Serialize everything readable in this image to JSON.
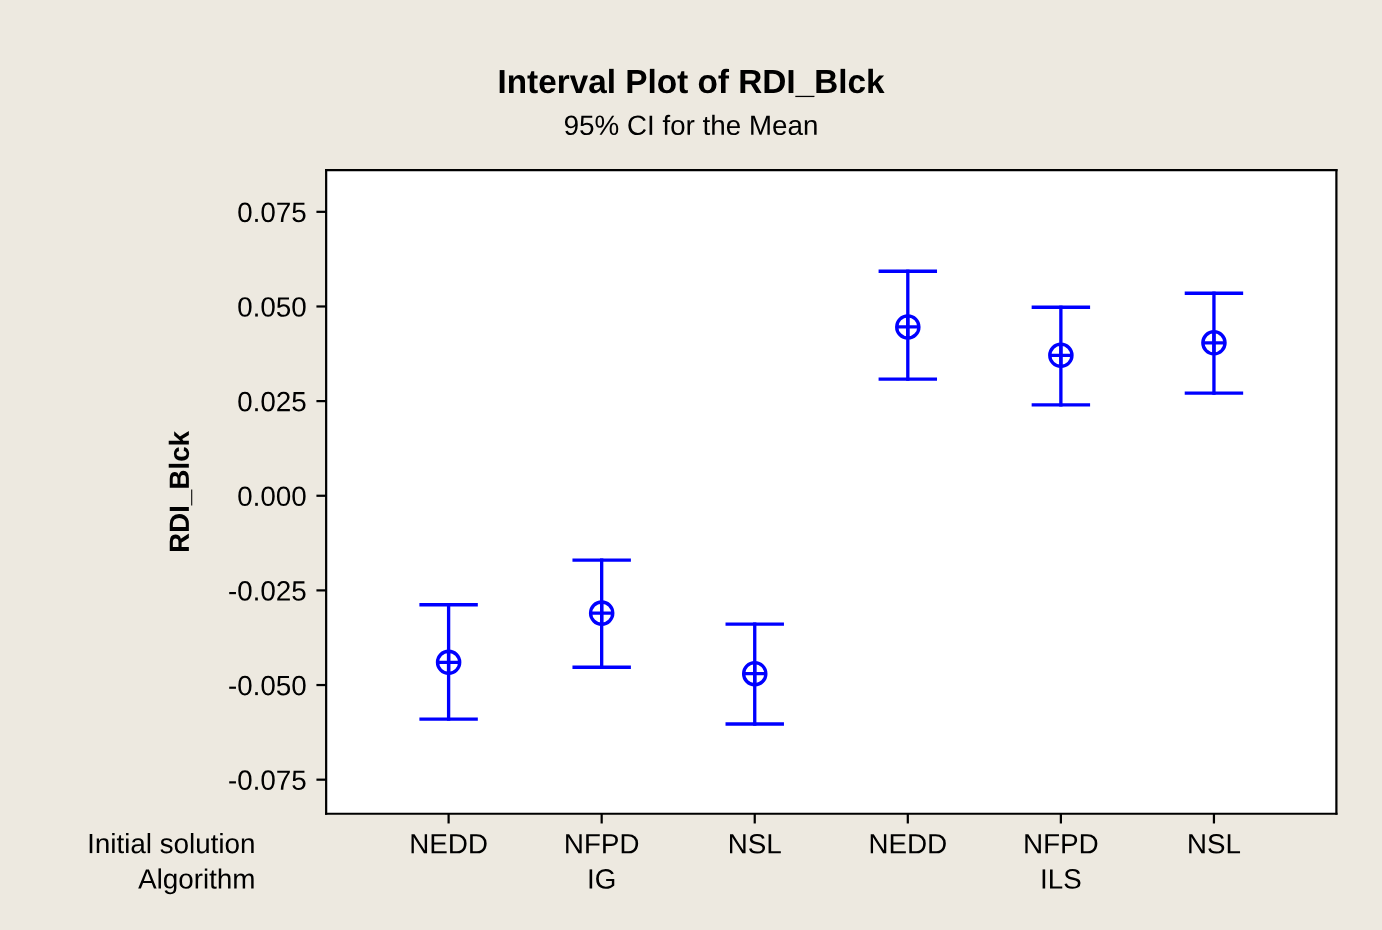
{
  "chart_data": {
    "type": "scatter",
    "title": "Interval Plot of RDI_Blck",
    "subtitle": "95% CI for the Mean",
    "ylabel": "RDI_Blck",
    "categories": [
      "NEDD",
      "NFPD",
      "NSL",
      "NEDD",
      "NFPD",
      "NSL"
    ],
    "series": [
      {
        "color": "#0000ff",
        "values": [
          -0.044,
          -0.031,
          -0.047,
          0.0446,
          0.0371,
          0.0404
        ],
        "errors": [
          [
            -0.059,
            -0.0288
          ],
          [
            -0.0453,
            -0.017
          ],
          [
            -0.0603,
            -0.0339
          ],
          [
            0.0308,
            0.0593
          ],
          [
            0.024,
            0.0498
          ],
          [
            0.0271,
            0.0535
          ]
        ]
      }
    ],
    "annotations": [
      "Initial solution",
      "Algorithm",
      "IG",
      "ILS"
    ],
    "ylim": [
      -0.084,
      0.086
    ],
    "yticks": [
      {
        "value": -0.075,
        "label": "-0.075"
      },
      {
        "value": -0.05,
        "label": "-0.050"
      },
      {
        "value": -0.025,
        "label": "-0.025"
      },
      {
        "value": 0,
        "label": "0.000"
      },
      {
        "value": 0.025,
        "label": "0.025"
      },
      {
        "value": 0.05,
        "label": "0.050"
      },
      {
        "value": 0.075,
        "label": "0.075"
      }
    ],
    "marker": "circle",
    "grid": false,
    "legend": false
  }
}
